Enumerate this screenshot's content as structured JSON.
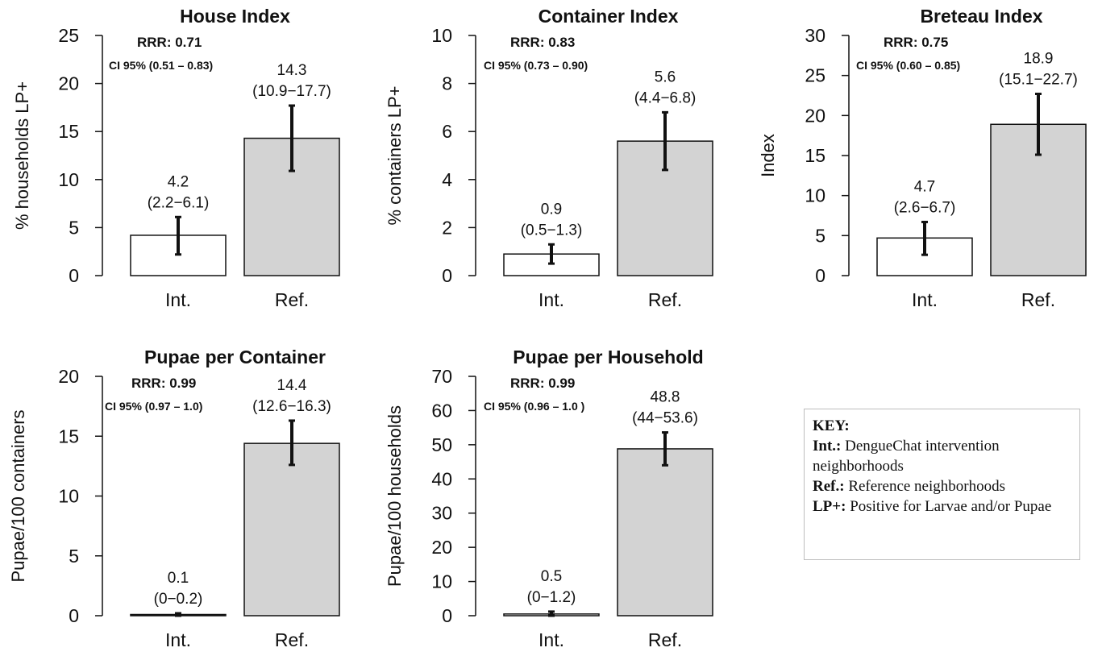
{
  "chart_data": [
    {
      "type": "bar",
      "title": "House Index",
      "ylabel": "% households LP+",
      "ylim": [
        0,
        25
      ],
      "yticks": [
        0,
        5,
        10,
        15,
        20,
        25
      ],
      "categories": [
        "Int.",
        "Ref."
      ],
      "values": [
        4.2,
        14.3
      ],
      "ci_low": [
        2.2,
        10.9
      ],
      "ci_high": [
        6.1,
        17.7
      ],
      "value_labels": [
        "4.2",
        "14.3"
      ],
      "ci_labels": [
        "(2.2−6.1)",
        "(10.9−17.7)"
      ],
      "bar_colors": [
        "#ffffff",
        "#d3d3d3"
      ],
      "rrr": "RRR: 0.71",
      "ci95": "CI 95%  (0.51 – 0.83)"
    },
    {
      "type": "bar",
      "title": "Container Index",
      "ylabel": "% containers LP+",
      "ylim": [
        0,
        10
      ],
      "yticks": [
        0,
        2,
        4,
        6,
        8,
        10
      ],
      "categories": [
        "Int.",
        "Ref."
      ],
      "values": [
        0.9,
        5.6
      ],
      "ci_low": [
        0.5,
        4.4
      ],
      "ci_high": [
        1.3,
        6.8
      ],
      "value_labels": [
        "0.9",
        "5.6"
      ],
      "ci_labels": [
        "(0.5−1.3)",
        "(4.4−6.8)"
      ],
      "bar_colors": [
        "#ffffff",
        "#d3d3d3"
      ],
      "rrr": "RRR: 0.83",
      "ci95": "CI 95% (0.73 – 0.90)"
    },
    {
      "type": "bar",
      "title": "Breteau Index",
      "ylabel": "Index",
      "ylim": [
        0,
        30
      ],
      "yticks": [
        0,
        5,
        10,
        15,
        20,
        25,
        30
      ],
      "categories": [
        "Int.",
        "Ref."
      ],
      "values": [
        4.7,
        18.9
      ],
      "ci_low": [
        2.6,
        15.1
      ],
      "ci_high": [
        6.7,
        22.7
      ],
      "value_labels": [
        "4.7",
        "18.9"
      ],
      "ci_labels": [
        "(2.6−6.7)",
        "(15.1−22.7)"
      ],
      "bar_colors": [
        "#ffffff",
        "#d3d3d3"
      ],
      "rrr": "RRR: 0.75",
      "ci95": "CI 95% (0.60 – 0.85)"
    },
    {
      "type": "bar",
      "title": "Pupae per Container",
      "ylabel": "Pupae/100 containers",
      "ylim": [
        0,
        20
      ],
      "yticks": [
        0,
        5,
        10,
        15,
        20
      ],
      "categories": [
        "Int.",
        "Ref."
      ],
      "values": [
        0.1,
        14.4
      ],
      "ci_low": [
        0,
        12.6
      ],
      "ci_high": [
        0.2,
        16.3
      ],
      "value_labels": [
        "0.1",
        "14.4"
      ],
      "ci_labels": [
        "(0−0.2)",
        "(12.6−16.3)"
      ],
      "bar_colors": [
        "#ffffff",
        "#d3d3d3"
      ],
      "rrr": "RRR: 0.99",
      "ci95": "CI 95% (0.97 – 1.0)"
    },
    {
      "type": "bar",
      "title": "Pupae per Household",
      "ylabel": "Pupae/100 households",
      "ylim": [
        0,
        70
      ],
      "yticks": [
        0,
        10,
        20,
        30,
        40,
        50,
        60,
        70
      ],
      "categories": [
        "Int.",
        "Ref."
      ],
      "values": [
        0.5,
        48.8
      ],
      "ci_low": [
        0,
        44
      ],
      "ci_high": [
        1.2,
        53.6
      ],
      "value_labels": [
        "0.5",
        "48.8"
      ],
      "ci_labels": [
        "(0−1.2)",
        "(44−53.6)"
      ],
      "bar_colors": [
        "#ffffff",
        "#d3d3d3"
      ],
      "rrr": "RRR: 0.99",
      "ci95": "CI 95%  (0.96 – 1.0 )"
    }
  ],
  "key": {
    "title": "KEY:",
    "int_term": "Int.:",
    "int_desc": "DengueChat intervention neighborhoods",
    "ref_term": "Ref.:",
    "ref_desc": "Reference neighborhoods",
    "lp_term": "LP+:",
    "lp_desc": "Positive for Larvae and/or Pupae"
  }
}
